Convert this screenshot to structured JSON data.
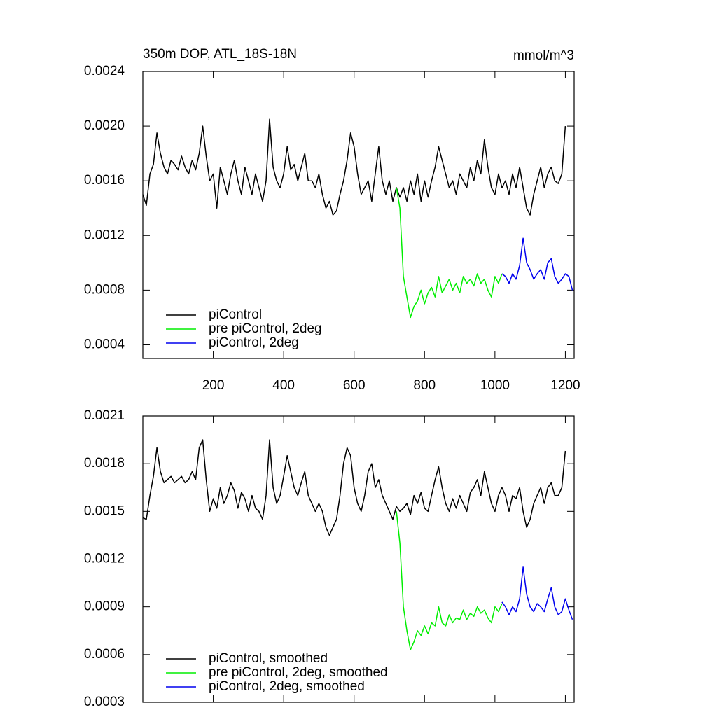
{
  "chart_data": [
    {
      "type": "line",
      "title": "350m DOP, ATL_18S-18N",
      "annotation": "mmol/m^3",
      "xlim": [
        0,
        1225
      ],
      "xticks": [
        200,
        400,
        600,
        800,
        1000,
        1200
      ],
      "xtick_labels": true,
      "ylim": [
        0.0003,
        0.0024
      ],
      "yticks": [
        {
          "value": 0.0004,
          "label": "0.0004"
        },
        {
          "value": 0.0008,
          "label": "0.0008"
        },
        {
          "value": 0.0012,
          "label": "0.0012"
        },
        {
          "value": 0.0016,
          "label": "0.0016"
        },
        {
          "value": 0.002,
          "label": "0.0020"
        },
        {
          "value": 0.0024,
          "label": "0.0024"
        }
      ],
      "legend": "lower left",
      "series": [
        {
          "name": "piControl",
          "color": "#000000",
          "x": [
            0,
            10,
            20,
            30,
            40,
            50,
            60,
            70,
            80,
            90,
            100,
            110,
            120,
            130,
            140,
            150,
            160,
            170,
            180,
            190,
            200,
            210,
            220,
            230,
            240,
            250,
            260,
            270,
            280,
            290,
            300,
            310,
            320,
            330,
            340,
            350,
            360,
            370,
            380,
            390,
            400,
            410,
            420,
            430,
            440,
            450,
            460,
            470,
            480,
            490,
            500,
            510,
            520,
            530,
            540,
            550,
            560,
            570,
            580,
            590,
            600,
            610,
            620,
            630,
            640,
            650,
            660,
            670,
            680,
            690,
            700,
            710,
            720,
            730,
            740,
            750,
            760,
            770,
            780,
            790,
            800,
            810,
            820,
            830,
            840,
            850,
            860,
            870,
            880,
            890,
            900,
            910,
            920,
            930,
            940,
            950,
            960,
            970,
            980,
            990,
            1000,
            1010,
            1020,
            1030,
            1040,
            1050,
            1060,
            1070,
            1080,
            1090,
            1100,
            1110,
            1120,
            1130,
            1140,
            1150,
            1160,
            1170,
            1180,
            1190,
            1200
          ],
          "values": [
            0.0015,
            0.00142,
            0.00165,
            0.00172,
            0.00195,
            0.0018,
            0.0017,
            0.00165,
            0.00175,
            0.00172,
            0.00168,
            0.00178,
            0.0017,
            0.00165,
            0.00175,
            0.00168,
            0.0018,
            0.002,
            0.00178,
            0.0016,
            0.00165,
            0.0014,
            0.0017,
            0.0016,
            0.0015,
            0.00165,
            0.00175,
            0.0016,
            0.0015,
            0.0017,
            0.0016,
            0.0015,
            0.00165,
            0.00155,
            0.00145,
            0.0016,
            0.00205,
            0.0017,
            0.0016,
            0.00155,
            0.00165,
            0.00185,
            0.00168,
            0.00172,
            0.0016,
            0.0017,
            0.0018,
            0.0016,
            0.0016,
            0.00155,
            0.00165,
            0.0015,
            0.0014,
            0.00145,
            0.00135,
            0.00138,
            0.0015,
            0.0016,
            0.00175,
            0.00195,
            0.00185,
            0.00165,
            0.0015,
            0.00155,
            0.0016,
            0.00145,
            0.00165,
            0.00185,
            0.0016,
            0.0015,
            0.0016,
            0.00145,
            0.00155,
            0.00148,
            0.00155,
            0.00145,
            0.0016,
            0.0015,
            0.00165,
            0.00145,
            0.0016,
            0.00148,
            0.0016,
            0.0017,
            0.00185,
            0.00175,
            0.00165,
            0.00155,
            0.0016,
            0.0015,
            0.00165,
            0.0016,
            0.00155,
            0.0017,
            0.0016,
            0.00175,
            0.00165,
            0.0019,
            0.0017,
            0.00155,
            0.0015,
            0.00165,
            0.00155,
            0.0016,
            0.0015,
            0.00165,
            0.00155,
            0.0017,
            0.00155,
            0.0014,
            0.00135,
            0.0015,
            0.0016,
            0.0017,
            0.00155,
            0.00165,
            0.0017,
            0.0016,
            0.00158,
            0.00165,
            0.002
          ]
        },
        {
          "name": "pre piControl, 2deg",
          "color": "#00ee00",
          "x": [
            720,
            730,
            740,
            750,
            760,
            770,
            780,
            790,
            800,
            810,
            820,
            830,
            840,
            850,
            860,
            870,
            880,
            890,
            900,
            910,
            920,
            930,
            940,
            950,
            960,
            970,
            980,
            990,
            1000,
            1010,
            1020
          ],
          "values": [
            0.00155,
            0.0014,
            0.0009,
            0.00075,
            0.0006,
            0.00068,
            0.00072,
            0.0008,
            0.0007,
            0.00078,
            0.00082,
            0.00075,
            0.0009,
            0.00078,
            0.00083,
            0.00088,
            0.0008,
            0.00085,
            0.00078,
            0.0009,
            0.00085,
            0.00088,
            0.00083,
            0.00092,
            0.00085,
            0.00088,
            0.0008,
            0.00075,
            0.0009,
            0.00085,
            0.00092
          ]
        },
        {
          "name": "piControl, 2deg",
          "color": "#0000ee",
          "x": [
            1020,
            1030,
            1040,
            1050,
            1060,
            1070,
            1080,
            1090,
            1100,
            1110,
            1120,
            1130,
            1140,
            1150,
            1160,
            1170,
            1180,
            1190,
            1200,
            1210,
            1220
          ],
          "values": [
            0.00092,
            0.0009,
            0.00085,
            0.00092,
            0.00088,
            0.00098,
            0.00118,
            0.001,
            0.00095,
            0.00088,
            0.00092,
            0.00095,
            0.00088,
            0.001,
            0.00103,
            0.0009,
            0.00085,
            0.00088,
            0.00092,
            0.0009,
            0.0008
          ]
        }
      ]
    },
    {
      "type": "line",
      "xlim": [
        0,
        1225
      ],
      "xticks": [
        200,
        400,
        600,
        800,
        1000,
        1200
      ],
      "xtick_labels": false,
      "ylim": [
        0.0003,
        0.0021
      ],
      "yticks": [
        {
          "value": 0.0003,
          "label": "0.0003"
        },
        {
          "value": 0.0006,
          "label": "0.0006"
        },
        {
          "value": 0.0009,
          "label": "0.0009"
        },
        {
          "value": 0.0012,
          "label": "0.0012"
        },
        {
          "value": 0.0015,
          "label": "0.0015"
        },
        {
          "value": 0.0018,
          "label": "0.0018"
        },
        {
          "value": 0.0021,
          "label": "0.0021"
        }
      ],
      "legend": "lower left",
      "series": [
        {
          "name": "piControl, smoothed",
          "color": "#000000",
          "x": [
            0,
            10,
            20,
            30,
            40,
            50,
            60,
            70,
            80,
            90,
            100,
            110,
            120,
            130,
            140,
            150,
            160,
            170,
            180,
            190,
            200,
            210,
            220,
            230,
            240,
            250,
            260,
            270,
            280,
            290,
            300,
            310,
            320,
            330,
            340,
            350,
            360,
            370,
            380,
            390,
            400,
            410,
            420,
            430,
            440,
            450,
            460,
            470,
            480,
            490,
            500,
            510,
            520,
            530,
            540,
            550,
            560,
            570,
            580,
            590,
            600,
            610,
            620,
            630,
            640,
            650,
            660,
            670,
            680,
            690,
            700,
            710,
            720,
            730,
            740,
            750,
            760,
            770,
            780,
            790,
            800,
            810,
            820,
            830,
            840,
            850,
            860,
            870,
            880,
            890,
            900,
            910,
            920,
            930,
            940,
            950,
            960,
            970,
            980,
            990,
            1000,
            1010,
            1020,
            1030,
            1040,
            1050,
            1060,
            1070,
            1080,
            1090,
            1100,
            1110,
            1120,
            1130,
            1140,
            1150,
            1160,
            1170,
            1180,
            1190,
            1200
          ],
          "values": [
            0.00146,
            0.00145,
            0.0016,
            0.00172,
            0.0019,
            0.00175,
            0.00168,
            0.0017,
            0.00172,
            0.00168,
            0.0017,
            0.00172,
            0.00168,
            0.0017,
            0.00175,
            0.0017,
            0.0019,
            0.00195,
            0.0017,
            0.0015,
            0.00158,
            0.00152,
            0.00165,
            0.00155,
            0.0016,
            0.00168,
            0.00163,
            0.00152,
            0.00162,
            0.00158,
            0.0015,
            0.0016,
            0.00152,
            0.0015,
            0.00145,
            0.0016,
            0.00195,
            0.00165,
            0.00155,
            0.0016,
            0.00172,
            0.00185,
            0.00175,
            0.00165,
            0.0016,
            0.00168,
            0.00175,
            0.0016,
            0.00155,
            0.0015,
            0.00155,
            0.0015,
            0.0014,
            0.00135,
            0.0014,
            0.00145,
            0.0016,
            0.0018,
            0.0019,
            0.00185,
            0.00165,
            0.00155,
            0.0015,
            0.0016,
            0.00175,
            0.0018,
            0.00165,
            0.0017,
            0.0016,
            0.00155,
            0.0015,
            0.00145,
            0.00153,
            0.0015,
            0.00152,
            0.00155,
            0.00148,
            0.0016,
            0.00155,
            0.00162,
            0.00152,
            0.0015,
            0.0016,
            0.0017,
            0.00178,
            0.00165,
            0.00155,
            0.0015,
            0.00158,
            0.00152,
            0.0016,
            0.00155,
            0.0015,
            0.00162,
            0.00165,
            0.0017,
            0.0016,
            0.00175,
            0.00165,
            0.00155,
            0.0015,
            0.0016,
            0.00165,
            0.0016,
            0.0015,
            0.0016,
            0.00158,
            0.00165,
            0.0015,
            0.0014,
            0.00145,
            0.00155,
            0.0016,
            0.00165,
            0.00155,
            0.00165,
            0.00168,
            0.0016,
            0.0016,
            0.00165,
            0.00188
          ]
        },
        {
          "name": "pre piControl, 2deg, smoothed",
          "color": "#00ee00",
          "x": [
            720,
            730,
            740,
            750,
            760,
            770,
            780,
            790,
            800,
            810,
            820,
            830,
            840,
            850,
            860,
            870,
            880,
            890,
            900,
            910,
            920,
            930,
            940,
            950,
            960,
            970,
            980,
            990,
            1000,
            1010,
            1020
          ],
          "values": [
            0.0015,
            0.0013,
            0.0009,
            0.00075,
            0.00063,
            0.00068,
            0.00075,
            0.00072,
            0.00078,
            0.00073,
            0.0008,
            0.00078,
            0.0009,
            0.0008,
            0.00078,
            0.00085,
            0.0008,
            0.00083,
            0.00082,
            0.00088,
            0.00082,
            0.00086,
            0.00084,
            0.0009,
            0.00086,
            0.00088,
            0.00083,
            0.0008,
            0.0009,
            0.00087,
            0.00092
          ]
        },
        {
          "name": "piControl, 2deg, smoothed",
          "color": "#0000ee",
          "x": [
            1020,
            1030,
            1040,
            1050,
            1060,
            1070,
            1080,
            1090,
            1100,
            1110,
            1120,
            1130,
            1140,
            1150,
            1160,
            1170,
            1180,
            1190,
            1200,
            1210,
            1220
          ],
          "values": [
            0.00093,
            0.0009,
            0.00085,
            0.0009,
            0.00087,
            0.00095,
            0.00115,
            0.00098,
            0.0009,
            0.00087,
            0.00092,
            0.0009,
            0.00087,
            0.00095,
            0.00102,
            0.0009,
            0.00085,
            0.00087,
            0.00095,
            0.00088,
            0.00082
          ]
        }
      ]
    }
  ]
}
